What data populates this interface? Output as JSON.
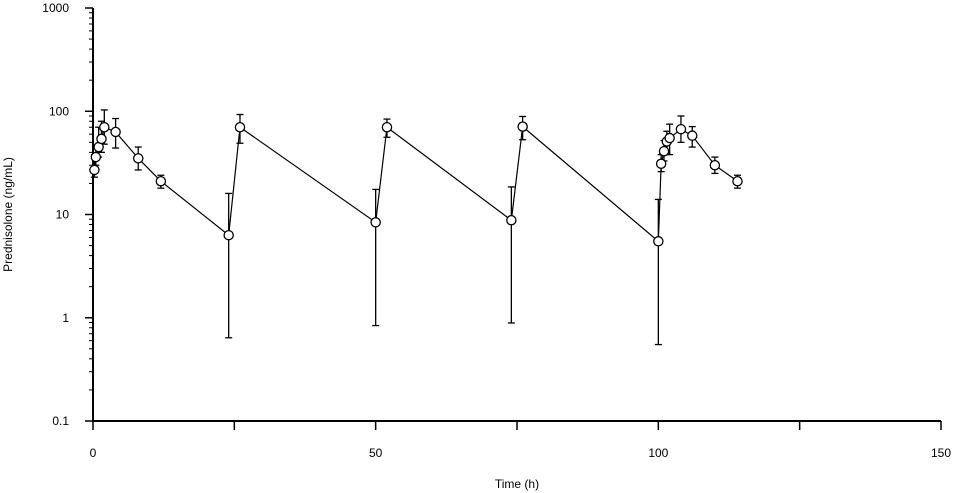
{
  "chart_data": {
    "type": "line",
    "title": "",
    "xlabel": "Time (h)",
    "ylabel": "Prednisolone (ng/mL)",
    "xlim": [
      0,
      150
    ],
    "ylim": [
      0.1,
      1000
    ],
    "yscale": "log",
    "x_ticks": [
      0,
      50,
      100,
      150
    ],
    "x_minor_ticks": [
      25,
      75,
      125
    ],
    "x_tick_labels": [
      "0",
      "50",
      "100",
      "150"
    ],
    "y_ticks": [
      0.1,
      1,
      10,
      100,
      1000
    ],
    "y_tick_labels": [
      "0.1",
      "1",
      "10",
      "100",
      "1000"
    ],
    "grid": false,
    "legend": "none",
    "marker": "open-circle",
    "line_color": "#000000",
    "series": [
      {
        "x": [
          0.25,
          0.5,
          1,
          1.5,
          2,
          4,
          8,
          12,
          24,
          26,
          50,
          52,
          74,
          76,
          100,
          100.5,
          101,
          101.5,
          102,
          104,
          106,
          110,
          114
        ],
        "y": [
          27,
          36,
          45,
          54,
          70,
          63,
          35,
          21,
          6.3,
          70,
          8.4,
          70,
          8.8,
          71,
          5.5,
          31,
          41,
          51,
          55,
          67,
          58,
          30,
          21
        ],
        "err_upper": [
          38,
          45,
          70,
          80,
          103,
          85,
          45,
          24,
          16,
          93,
          17.5,
          84,
          18.5,
          89,
          14,
          38,
          52,
          64,
          75,
          90,
          71,
          36,
          24
        ],
        "err_lower": [
          23,
          30,
          36,
          40,
          48,
          44,
          27,
          18,
          0.64,
          49,
          0.84,
          56,
          0.89,
          53,
          0.55,
          26,
          33,
          39,
          38,
          50,
          45,
          25,
          18
        ]
      }
    ]
  }
}
